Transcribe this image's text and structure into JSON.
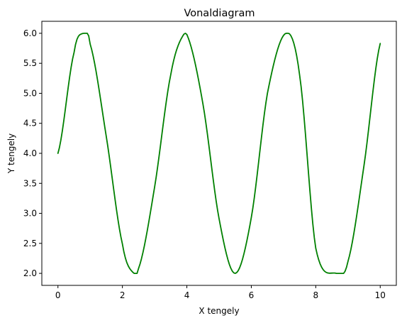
{
  "chart_data": {
    "type": "line",
    "title": "Vonaldiagram",
    "xlabel": "X tengely",
    "ylabel": "Y tengely",
    "xlim": [
      -0.5,
      10.5
    ],
    "ylim": [
      1.8,
      6.2
    ],
    "xticks": [
      0,
      2,
      4,
      6,
      8,
      10
    ],
    "xtick_labels": [
      "0",
      "2",
      "4",
      "6",
      "8",
      "10"
    ],
    "yticks": [
      2.0,
      2.5,
      3.0,
      3.5,
      4.0,
      4.5,
      5.0,
      5.5,
      6.0
    ],
    "ytick_labels": [
      "2.0",
      "2.5",
      "3.0",
      "3.5",
      "4.0",
      "4.5",
      "5.0",
      "5.5",
      "6.0"
    ],
    "grid": false,
    "series": [
      {
        "color": "#008000",
        "x": [
          0,
          0.5,
          0.785,
          1.0,
          1.5,
          2.0,
          2.356,
          2.5,
          3.0,
          3.5,
          3.927,
          4.0,
          4.5,
          5.0,
          5.498,
          6.0,
          6.5,
          7.069,
          7.5,
          8.0,
          8.639,
          9.0,
          9.5,
          10.0
        ],
        "y": [
          4.0,
          5.68,
          6.0,
          5.82,
          4.28,
          2.49,
          2.0,
          2.08,
          3.44,
          5.31,
          6.0,
          5.98,
          4.82,
          2.91,
          2.0,
          2.93,
          5.0,
          6.0,
          5.3,
          2.42,
          2.0,
          2.2,
          3.81,
          5.83
        ]
      }
    ]
  }
}
